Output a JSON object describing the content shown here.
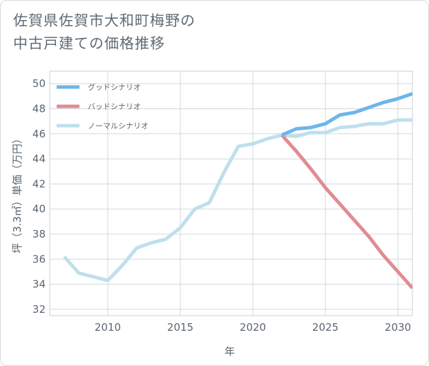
{
  "title_line1": "佐賀県佐賀市大和町梅野の",
  "title_line2": "中古戸建ての価格推移",
  "chart_data": {
    "type": "line",
    "title": "佐賀県佐賀市大和町梅野の中古戸建ての価格推移",
    "xlabel": "年",
    "ylabel": "坪（3.3㎡）単価（万円）",
    "xlim": [
      2006,
      2031
    ],
    "ylim": [
      31.5,
      51
    ],
    "xticks": [
      2010,
      2015,
      2020,
      2025,
      2030
    ],
    "yticks": [
      32,
      34,
      36,
      38,
      40,
      42,
      44,
      46,
      48,
      50
    ],
    "grid": true,
    "legend_position": "top-left",
    "series": [
      {
        "name": "グッドシナリオ",
        "color": "#6cb6ea",
        "x": [
          2022,
          2023,
          2024,
          2025,
          2026,
          2027,
          2028,
          2029,
          2030,
          2031
        ],
        "y": [
          45.9,
          46.4,
          46.5,
          46.8,
          47.5,
          47.7,
          48.1,
          48.5,
          48.8,
          49.2
        ]
      },
      {
        "name": "バッドシナリオ",
        "color": "#e08c93",
        "x": [
          2022,
          2023,
          2024,
          2025,
          2026,
          2027,
          2028,
          2029,
          2030,
          2031
        ],
        "y": [
          45.9,
          44.6,
          43.2,
          41.7,
          40.4,
          39.1,
          37.8,
          36.3,
          35.0,
          33.7
        ]
      },
      {
        "name": "ノーマルシナリオ",
        "color": "#bfdfec",
        "x": [
          2007,
          2008,
          2009,
          2010,
          2011,
          2012,
          2013,
          2014,
          2015,
          2016,
          2017,
          2018,
          2019,
          2020,
          2021,
          2022,
          2023,
          2024,
          2025,
          2026,
          2027,
          2028,
          2029,
          2030,
          2031
        ],
        "y": [
          36.2,
          34.9,
          34.6,
          34.3,
          35.5,
          36.9,
          37.3,
          37.6,
          38.5,
          40.0,
          40.5,
          42.9,
          45.0,
          45.2,
          45.6,
          45.9,
          45.8,
          46.1,
          46.1,
          46.5,
          46.6,
          46.8,
          46.8,
          47.1,
          47.1
        ]
      }
    ]
  }
}
